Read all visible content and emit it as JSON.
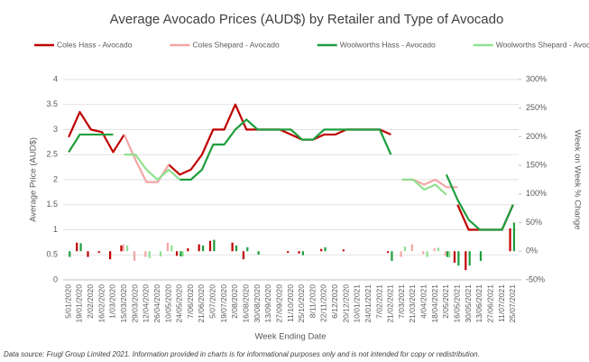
{
  "chart_data": {
    "type": "line",
    "title": "Average Avocado Prices (AUD$) by Retailer and Type of Avocado",
    "y_label": "Average Price (AUD$)",
    "y2_label": "Week on Week % Change",
    "x_label": "Week Ending Date",
    "source": "Data source: Frugl Group Limited 2021. Information provided in charts is for informational purposes only and is not intended for copy or redistribution.",
    "categories": [
      "5/01/2020",
      "19/01/2020",
      "2/02/2020",
      "16/02/2020",
      "1/03/2020",
      "15/03/2020",
      "29/03/2020",
      "12/04/2020",
      "26/04/2020",
      "10/05/2020",
      "24/05/2020",
      "7/06/2020",
      "21/06/2020",
      "5/07/2020",
      "19/07/2020",
      "2/08/2020",
      "16/08/2020",
      "30/08/2020",
      "13/09/2020",
      "27/09/2020",
      "11/10/2020",
      "25/10/2020",
      "8/11/2020",
      "22/11/2020",
      "6/12/2020",
      "20/12/2020",
      "10/01/2021",
      "24/01/2021",
      "7/02/2021",
      "21/02/2021",
      "7/03/2021",
      "21/03/2021",
      "4/04/2021",
      "18/04/2021",
      "2/05/2021",
      "16/05/2021",
      "30/05/2021",
      "13/06/2021",
      "27/06/2021",
      "11/07/2021",
      "25/07/2021"
    ],
    "series": [
      {
        "name": "Coles Hass - Avocado",
        "color": "#c00000",
        "values": [
          2.85,
          3.35,
          3.0,
          2.95,
          2.55,
          2.9,
          null,
          null,
          null,
          2.3,
          2.1,
          2.2,
          2.5,
          3.0,
          3.0,
          3.5,
          3.0,
          3.0,
          3.0,
          3.0,
          2.9,
          2.8,
          2.8,
          2.9,
          2.9,
          3.0,
          3.0,
          3.0,
          3.0,
          2.9,
          null,
          null,
          null,
          null,
          null,
          1.5,
          1.0,
          1.0,
          1.0,
          1.0,
          1.5
        ]
      },
      {
        "name": "Coles Shepard - Avocado",
        "color": "#f4a6a6",
        "values": [
          null,
          null,
          null,
          null,
          null,
          2.9,
          2.4,
          1.95,
          1.95,
          2.3,
          null,
          null,
          null,
          null,
          null,
          null,
          null,
          null,
          null,
          null,
          null,
          null,
          null,
          null,
          null,
          null,
          null,
          null,
          null,
          null,
          2.0,
          2.0,
          1.9,
          2.0,
          1.85,
          1.85,
          null,
          null,
          null,
          null,
          null
        ]
      },
      {
        "name": "Woolworths Hass - Avocado",
        "color": "#1e9e3e",
        "values": [
          2.55,
          2.9,
          2.9,
          2.9,
          2.9,
          null,
          null,
          null,
          null,
          null,
          2.0,
          2.0,
          2.2,
          2.7,
          2.7,
          3.0,
          3.2,
          3.0,
          3.0,
          3.0,
          3.0,
          2.8,
          2.8,
          3.0,
          3.0,
          3.0,
          3.0,
          3.0,
          3.0,
          2.5,
          null,
          null,
          null,
          null,
          2.1,
          1.6,
          1.2,
          1.0,
          1.0,
          1.0,
          1.5
        ]
      },
      {
        "name": "Woolworths Shepard - Avocado",
        "color": "#90e090",
        "values": [
          null,
          null,
          null,
          null,
          null,
          2.5,
          2.5,
          2.2,
          2.0,
          2.2,
          2.0,
          null,
          null,
          null,
          null,
          null,
          null,
          null,
          null,
          null,
          null,
          null,
          null,
          null,
          null,
          null,
          null,
          null,
          null,
          null,
          2.0,
          2.0,
          1.8,
          1.9,
          1.7,
          null,
          null,
          null,
          null,
          null,
          null
        ]
      },
      {
        "type": "bar",
        "axis": "y2",
        "color": "#c00000",
        "values": [
          null,
          15,
          -10,
          -3,
          -14,
          10,
          null,
          null,
          null,
          null,
          -8,
          5,
          12,
          18,
          null,
          15,
          -14,
          null,
          null,
          null,
          -3,
          -4,
          null,
          4,
          null,
          3,
          null,
          null,
          null,
          -3,
          null,
          null,
          null,
          null,
          null,
          -20,
          -33,
          null,
          null,
          null,
          40
        ]
      },
      {
        "type": "bar",
        "axis": "y2",
        "color": "#f4a6a6",
        "values": [
          null,
          null,
          null,
          null,
          null,
          12,
          -17,
          -10,
          null,
          15,
          null,
          null,
          null,
          null,
          null,
          null,
          null,
          null,
          null,
          null,
          null,
          null,
          null,
          null,
          null,
          null,
          null,
          null,
          null,
          null,
          -10,
          12,
          -5,
          5,
          -8,
          null,
          null,
          null,
          null,
          null,
          null
        ]
      },
      {
        "type": "bar",
        "axis": "y2",
        "color": "#1e9e3e",
        "values": [
          -10,
          14,
          null,
          null,
          null,
          null,
          null,
          null,
          null,
          null,
          -9,
          null,
          10,
          20,
          null,
          10,
          7,
          -6,
          null,
          null,
          null,
          -7,
          null,
          7,
          null,
          null,
          null,
          null,
          null,
          -17,
          null,
          null,
          null,
          null,
          -10,
          -25,
          -25,
          -17,
          null,
          null,
          50
        ]
      },
      {
        "type": "bar",
        "axis": "y2",
        "color": "#90e090",
        "values": [
          null,
          null,
          null,
          null,
          null,
          10,
          null,
          -12,
          -9,
          10,
          -9,
          null,
          null,
          null,
          null,
          null,
          null,
          null,
          null,
          null,
          null,
          null,
          null,
          null,
          null,
          null,
          null,
          null,
          null,
          null,
          8,
          null,
          -10,
          6,
          -11,
          null,
          null,
          null,
          null,
          null,
          null
        ]
      }
    ],
    "ylim": [
      0,
      4
    ],
    "yticks": [
      0,
      0.5,
      1,
      1.5,
      2,
      2.5,
      3,
      3.5,
      4
    ],
    "y2lim": [
      -50,
      300
    ],
    "y2ticks": [
      {
        "value": -50,
        "label": "-50%"
      },
      {
        "value": 0,
        "label": "0%"
      },
      {
        "value": 50,
        "label": "50%"
      },
      {
        "value": 100,
        "label": "100%"
      },
      {
        "value": 150,
        "label": "150%"
      },
      {
        "value": 200,
        "label": "200%"
      },
      {
        "value": 250,
        "label": "250%"
      },
      {
        "value": 300,
        "label": "300%"
      }
    ],
    "grid": true,
    "legend": "top"
  }
}
